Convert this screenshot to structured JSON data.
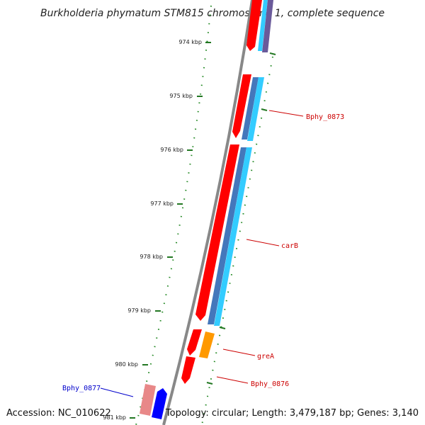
{
  "title": "Burkholderia phymatum STM815 chromosome 1, complete sequence",
  "footer": {
    "accession": "Accession: NC_010622",
    "topology": "Topology: circular; Length: 3,479,187 bp; Genes: 3,140"
  },
  "ticks": [
    "974 kbp",
    "975 kbp",
    "976 kbp",
    "977 kbp",
    "978 kbp",
    "979 kbp",
    "980 kbp",
    "981 kbp"
  ],
  "gene_labels": [
    {
      "name": "Bphy_0873",
      "color": "#cc0000"
    },
    {
      "name": "carB",
      "color": "#cc0000"
    },
    {
      "name": "greA",
      "color": "#cc0000"
    },
    {
      "name": "Bphy_0876",
      "color": "#cc0000"
    },
    {
      "name": "Bphy_0877",
      "color": "#0000cc"
    }
  ],
  "colors": {
    "cds_forward": "#ff0000",
    "cds_reverse": "#0000ff",
    "gene_highlight": "#ff9900",
    "cog_light_blue": "#33ccff",
    "cog_steel_blue": "#4477bb",
    "tick_mark": "#227722",
    "backbone": "#888888"
  }
}
